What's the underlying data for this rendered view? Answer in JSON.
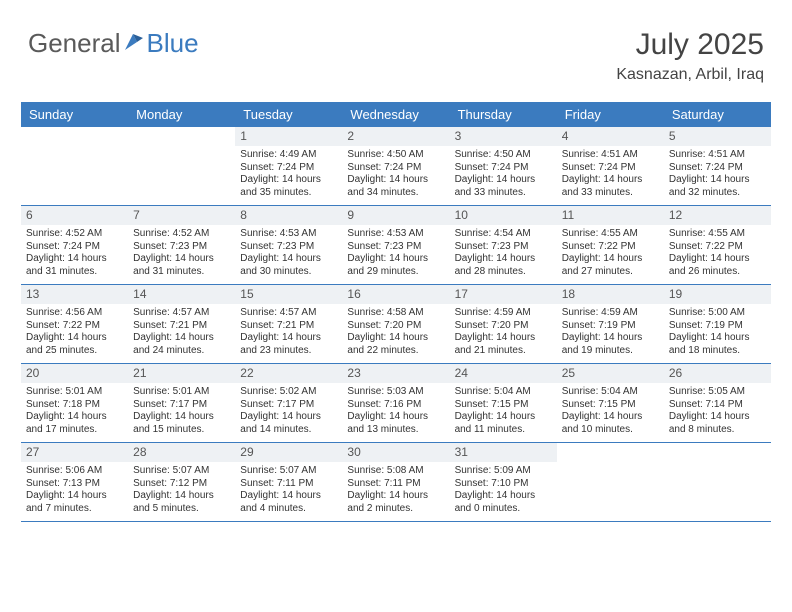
{
  "brand": {
    "part1": "General",
    "part2": "Blue"
  },
  "title": "July 2025",
  "location": "Kasnazan, Arbil, Iraq",
  "colors": {
    "header_bg": "#3b7bbf",
    "header_text": "#ffffff",
    "daynum_bg": "#eef1f4",
    "border": "#3b7bbf",
    "text": "#333333",
    "brand_gray": "#5a5a5a",
    "brand_blue": "#3b7bbf"
  },
  "day_names": [
    "Sunday",
    "Monday",
    "Tuesday",
    "Wednesday",
    "Thursday",
    "Friday",
    "Saturday"
  ],
  "weeks": [
    [
      null,
      null,
      {
        "n": "1",
        "sr": "Sunrise: 4:49 AM",
        "ss": "Sunset: 7:24 PM",
        "d1": "Daylight: 14 hours",
        "d2": "and 35 minutes."
      },
      {
        "n": "2",
        "sr": "Sunrise: 4:50 AM",
        "ss": "Sunset: 7:24 PM",
        "d1": "Daylight: 14 hours",
        "d2": "and 34 minutes."
      },
      {
        "n": "3",
        "sr": "Sunrise: 4:50 AM",
        "ss": "Sunset: 7:24 PM",
        "d1": "Daylight: 14 hours",
        "d2": "and 33 minutes."
      },
      {
        "n": "4",
        "sr": "Sunrise: 4:51 AM",
        "ss": "Sunset: 7:24 PM",
        "d1": "Daylight: 14 hours",
        "d2": "and 33 minutes."
      },
      {
        "n": "5",
        "sr": "Sunrise: 4:51 AM",
        "ss": "Sunset: 7:24 PM",
        "d1": "Daylight: 14 hours",
        "d2": "and 32 minutes."
      }
    ],
    [
      {
        "n": "6",
        "sr": "Sunrise: 4:52 AM",
        "ss": "Sunset: 7:24 PM",
        "d1": "Daylight: 14 hours",
        "d2": "and 31 minutes."
      },
      {
        "n": "7",
        "sr": "Sunrise: 4:52 AM",
        "ss": "Sunset: 7:23 PM",
        "d1": "Daylight: 14 hours",
        "d2": "and 31 minutes."
      },
      {
        "n": "8",
        "sr": "Sunrise: 4:53 AM",
        "ss": "Sunset: 7:23 PM",
        "d1": "Daylight: 14 hours",
        "d2": "and 30 minutes."
      },
      {
        "n": "9",
        "sr": "Sunrise: 4:53 AM",
        "ss": "Sunset: 7:23 PM",
        "d1": "Daylight: 14 hours",
        "d2": "and 29 minutes."
      },
      {
        "n": "10",
        "sr": "Sunrise: 4:54 AM",
        "ss": "Sunset: 7:23 PM",
        "d1": "Daylight: 14 hours",
        "d2": "and 28 minutes."
      },
      {
        "n": "11",
        "sr": "Sunrise: 4:55 AM",
        "ss": "Sunset: 7:22 PM",
        "d1": "Daylight: 14 hours",
        "d2": "and 27 minutes."
      },
      {
        "n": "12",
        "sr": "Sunrise: 4:55 AM",
        "ss": "Sunset: 7:22 PM",
        "d1": "Daylight: 14 hours",
        "d2": "and 26 minutes."
      }
    ],
    [
      {
        "n": "13",
        "sr": "Sunrise: 4:56 AM",
        "ss": "Sunset: 7:22 PM",
        "d1": "Daylight: 14 hours",
        "d2": "and 25 minutes."
      },
      {
        "n": "14",
        "sr": "Sunrise: 4:57 AM",
        "ss": "Sunset: 7:21 PM",
        "d1": "Daylight: 14 hours",
        "d2": "and 24 minutes."
      },
      {
        "n": "15",
        "sr": "Sunrise: 4:57 AM",
        "ss": "Sunset: 7:21 PM",
        "d1": "Daylight: 14 hours",
        "d2": "and 23 minutes."
      },
      {
        "n": "16",
        "sr": "Sunrise: 4:58 AM",
        "ss": "Sunset: 7:20 PM",
        "d1": "Daylight: 14 hours",
        "d2": "and 22 minutes."
      },
      {
        "n": "17",
        "sr": "Sunrise: 4:59 AM",
        "ss": "Sunset: 7:20 PM",
        "d1": "Daylight: 14 hours",
        "d2": "and 21 minutes."
      },
      {
        "n": "18",
        "sr": "Sunrise: 4:59 AM",
        "ss": "Sunset: 7:19 PM",
        "d1": "Daylight: 14 hours",
        "d2": "and 19 minutes."
      },
      {
        "n": "19",
        "sr": "Sunrise: 5:00 AM",
        "ss": "Sunset: 7:19 PM",
        "d1": "Daylight: 14 hours",
        "d2": "and 18 minutes."
      }
    ],
    [
      {
        "n": "20",
        "sr": "Sunrise: 5:01 AM",
        "ss": "Sunset: 7:18 PM",
        "d1": "Daylight: 14 hours",
        "d2": "and 17 minutes."
      },
      {
        "n": "21",
        "sr": "Sunrise: 5:01 AM",
        "ss": "Sunset: 7:17 PM",
        "d1": "Daylight: 14 hours",
        "d2": "and 15 minutes."
      },
      {
        "n": "22",
        "sr": "Sunrise: 5:02 AM",
        "ss": "Sunset: 7:17 PM",
        "d1": "Daylight: 14 hours",
        "d2": "and 14 minutes."
      },
      {
        "n": "23",
        "sr": "Sunrise: 5:03 AM",
        "ss": "Sunset: 7:16 PM",
        "d1": "Daylight: 14 hours",
        "d2": "and 13 minutes."
      },
      {
        "n": "24",
        "sr": "Sunrise: 5:04 AM",
        "ss": "Sunset: 7:15 PM",
        "d1": "Daylight: 14 hours",
        "d2": "and 11 minutes."
      },
      {
        "n": "25",
        "sr": "Sunrise: 5:04 AM",
        "ss": "Sunset: 7:15 PM",
        "d1": "Daylight: 14 hours",
        "d2": "and 10 minutes."
      },
      {
        "n": "26",
        "sr": "Sunrise: 5:05 AM",
        "ss": "Sunset: 7:14 PM",
        "d1": "Daylight: 14 hours",
        "d2": "and 8 minutes."
      }
    ],
    [
      {
        "n": "27",
        "sr": "Sunrise: 5:06 AM",
        "ss": "Sunset: 7:13 PM",
        "d1": "Daylight: 14 hours",
        "d2": "and 7 minutes."
      },
      {
        "n": "28",
        "sr": "Sunrise: 5:07 AM",
        "ss": "Sunset: 7:12 PM",
        "d1": "Daylight: 14 hours",
        "d2": "and 5 minutes."
      },
      {
        "n": "29",
        "sr": "Sunrise: 5:07 AM",
        "ss": "Sunset: 7:11 PM",
        "d1": "Daylight: 14 hours",
        "d2": "and 4 minutes."
      },
      {
        "n": "30",
        "sr": "Sunrise: 5:08 AM",
        "ss": "Sunset: 7:11 PM",
        "d1": "Daylight: 14 hours",
        "d2": "and 2 minutes."
      },
      {
        "n": "31",
        "sr": "Sunrise: 5:09 AM",
        "ss": "Sunset: 7:10 PM",
        "d1": "Daylight: 14 hours",
        "d2": "and 0 minutes."
      },
      null,
      null
    ]
  ]
}
